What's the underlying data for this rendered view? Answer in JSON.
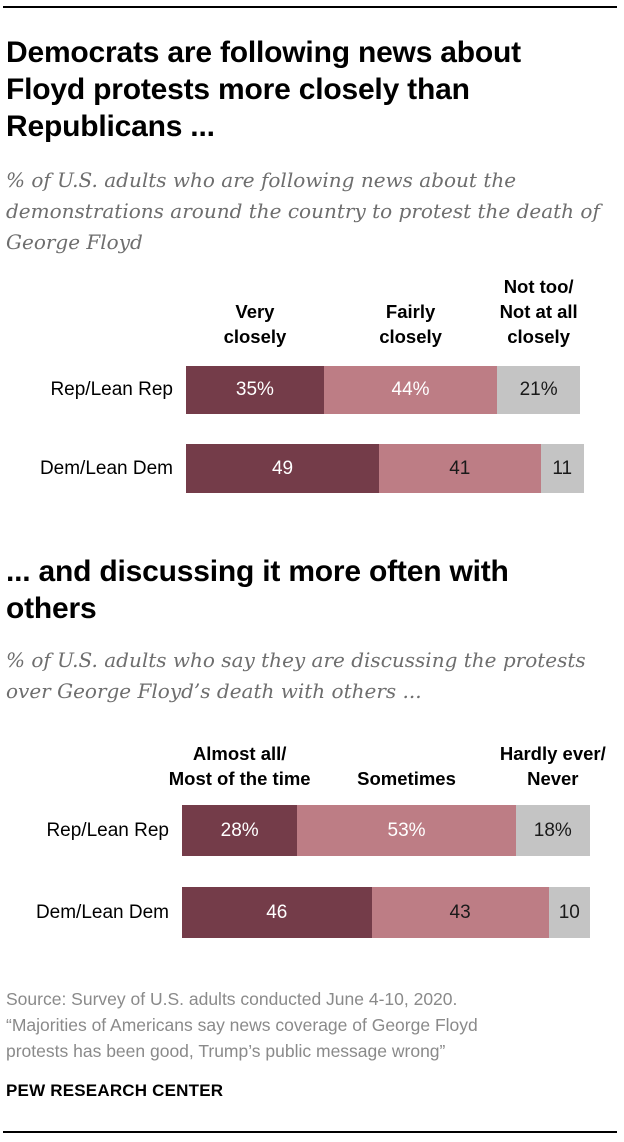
{
  "chart_data": [
    {
      "type": "bar",
      "orientation": "horizontal",
      "stacked": true,
      "title": "Democrats are following news about Floyd protests more closely than Republicans ...",
      "subtitle": "% of U.S. adults who are following news about the demonstrations around the country to protest the death of George Floyd",
      "categories": [
        "Rep/Lean Rep",
        "Dem/Lean Dem"
      ],
      "series": [
        {
          "name": "Very closely",
          "values": [
            35,
            49
          ],
          "labels": [
            "35%",
            "49"
          ]
        },
        {
          "name": "Fairly closely",
          "values": [
            44,
            41
          ],
          "labels": [
            "44%",
            "41"
          ]
        },
        {
          "name": "Not too/ Not at all closely",
          "values": [
            21,
            11
          ],
          "labels": [
            "21%",
            "11"
          ]
        }
      ],
      "column_headers": [
        [
          "Very",
          "closely"
        ],
        [
          "Fairly",
          "closely"
        ],
        [
          "Not too/",
          "Not at all",
          "closely"
        ]
      ],
      "legend": "column headers above bars",
      "grid": false
    },
    {
      "type": "bar",
      "orientation": "horizontal",
      "stacked": true,
      "title": "... and discussing it more often with others",
      "subtitle": "% of U.S. adults who say they are discussing the protests over George Floyd’s death with others ...",
      "categories": [
        "Rep/Lean Rep",
        "Dem/Lean Dem"
      ],
      "series": [
        {
          "name": "Almost all/ Most of the time",
          "values": [
            28,
            46
          ],
          "labels": [
            "28%",
            "46"
          ]
        },
        {
          "name": "Sometimes",
          "values": [
            53,
            43
          ],
          "labels": [
            "53%",
            "43"
          ]
        },
        {
          "name": "Hardly ever/ Never",
          "values": [
            18,
            10
          ],
          "labels": [
            "18%",
            "10"
          ]
        }
      ],
      "column_headers": [
        [
          "Almost all/",
          "Most of the time"
        ],
        [
          "Sometimes"
        ],
        [
          "Hardly ever/",
          "Never"
        ]
      ],
      "legend": "column headers above bars",
      "grid": false
    }
  ],
  "colors": {
    "segment_dark": "#743c49",
    "segment_mid": "#bd7d85",
    "segment_light": "#c4c4c4"
  },
  "source": {
    "line1": "Source: Survey of U.S. adults conducted June 4-10, 2020.",
    "line2": "“Majorities of Americans say news coverage of George Floyd",
    "line3": "protests has been good, Trump’s public message wrong”"
  },
  "brand": "PEW RESEARCH CENTER"
}
